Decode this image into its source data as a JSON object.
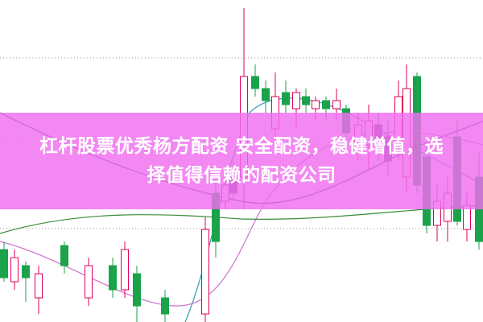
{
  "banner": {
    "line1": "杠杆股票优秀杨方配资 安全配资，稳健增值，选",
    "line2": "择值得信赖的配资公司"
  },
  "colors": {
    "up": "#e0005a",
    "down": "#1aa34a",
    "down_under_banner": "#7a4a8a",
    "banner": "#f06ef0",
    "ma_lines": [
      "#3b2f7a",
      "#2aa0b0",
      "#d070d0",
      "#3a8a3a"
    ]
  }
}
